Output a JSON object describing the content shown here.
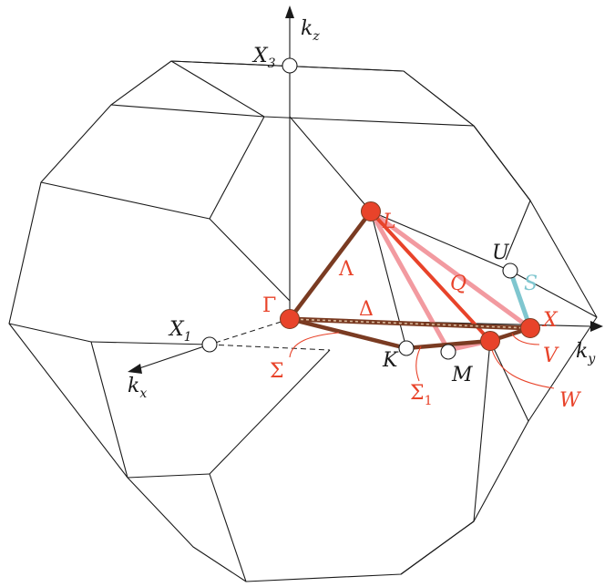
{
  "axes": {
    "kz": {
      "base": "k",
      "sub": "z"
    },
    "ky": {
      "base": "k",
      "sub": "y"
    },
    "kx": {
      "base": "k",
      "sub": "x"
    }
  },
  "points": {
    "X3": {
      "base": "X",
      "sub": "3"
    },
    "X1": {
      "base": "X",
      "sub": "1"
    },
    "U": "U",
    "K": "K",
    "M": "M",
    "Gamma": "Γ",
    "L": "L",
    "X": "X",
    "W": "W",
    "V": "V"
  },
  "paths": {
    "Lambda": "Λ",
    "Delta": "Δ",
    "Q": "Q",
    "S": "S",
    "Sigma": "Σ",
    "Sigma1": {
      "base": "Σ",
      "sub": "1"
    }
  },
  "colors": {
    "point_fill": "#e8432a",
    "label_red": "#e8432a",
    "line_brown": "#7a3b22",
    "line_red": "#e8432a",
    "line_pink": "#f29aa0",
    "line_cyan": "#7fc6cf",
    "outline": "#1a1a1a"
  }
}
